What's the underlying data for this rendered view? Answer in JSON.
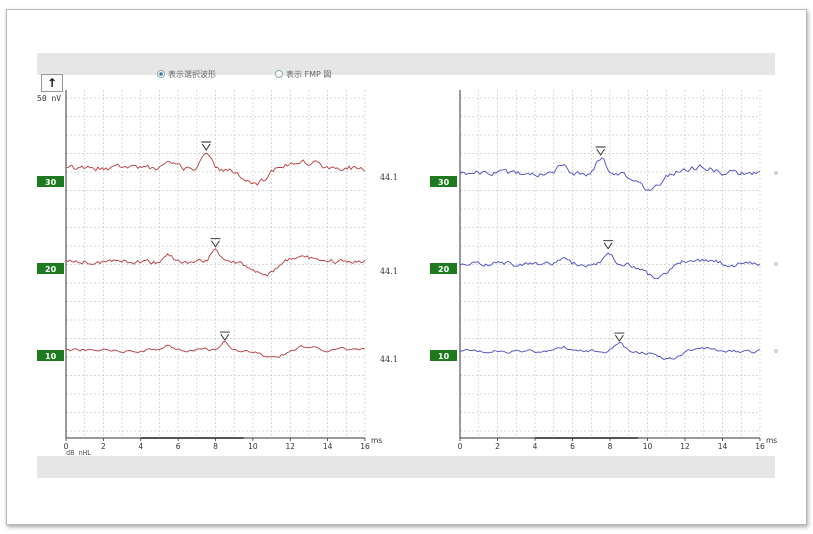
{
  "toolbar": {
    "up_arrow": "↑",
    "radio_left": "表示選択波形",
    "radio_right": "表示 FMP 図"
  },
  "scale_label": "50 nV",
  "db_label": "dB nHL",
  "colors": {
    "left_trace": "#b63a3a",
    "right_trace": "#4a4ac4",
    "level_badge": "#1e7a1e",
    "grid": "#c8c8c8"
  },
  "chart_data": [
    {
      "type": "line",
      "title": "",
      "xlabel": "ms",
      "ylabel": "",
      "xlim": [
        0,
        16
      ],
      "x_ticks": [
        "0",
        "2",
        "4",
        "6",
        "8",
        "10",
        "12",
        "14",
        "16"
      ],
      "grid": true,
      "series": [
        {
          "level": "30",
          "side_value": "44.1",
          "marker_x": 7.5
        },
        {
          "level": "20",
          "side_value": "44.1",
          "marker_x": 8.0
        },
        {
          "level": "10",
          "side_value": "44.1",
          "marker_x": 8.5
        }
      ]
    },
    {
      "type": "line",
      "title": "",
      "xlabel": "ms",
      "ylabel": "",
      "xlim": [
        0,
        16
      ],
      "x_ticks": [
        "0",
        "2",
        "4",
        "6",
        "8",
        "10",
        "12",
        "14",
        "16"
      ],
      "grid": true,
      "series": [
        {
          "level": "30",
          "side_value": "",
          "marker_x": 7.5
        },
        {
          "level": "20",
          "side_value": "",
          "marker_x": 7.9
        },
        {
          "level": "10",
          "side_value": "",
          "marker_x": 8.5
        }
      ]
    }
  ]
}
